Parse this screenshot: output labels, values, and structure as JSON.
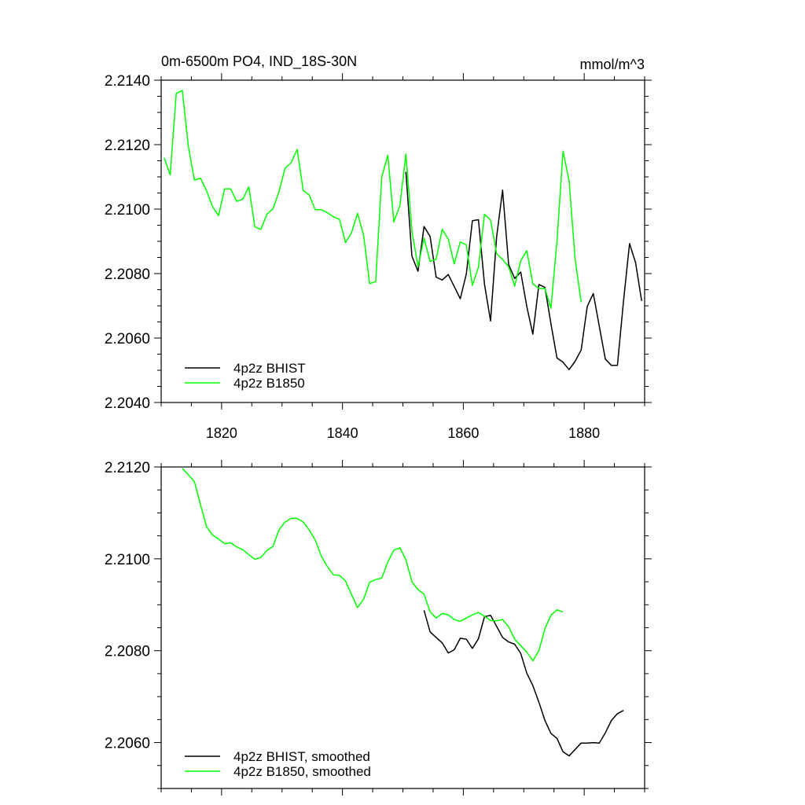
{
  "chart_data": [
    {
      "type": "line",
      "title": "0m-6500m PO4, IND_18S-30N",
      "units_label": "mmol/m^3",
      "xlim": [
        1810,
        1890
      ],
      "ylim": [
        2.204,
        2.214
      ],
      "x_ticks": [
        1820,
        1840,
        1860,
        1880
      ],
      "x_tick_labels": [
        "1820",
        "1840",
        "1860",
        "1880"
      ],
      "y_ticks": [
        2.204,
        2.206,
        2.208,
        2.21,
        2.212,
        2.214
      ],
      "y_tick_labels": [
        "2.2040",
        "2.2060",
        "2.2080",
        "2.2100",
        "2.2120",
        "2.2140"
      ],
      "legend_position": "bottom-left",
      "series": [
        {
          "name": "4p2z BHIST",
          "color": "#000000",
          "x_start": 1850.5,
          "values": [
            2.21116,
            2.20854,
            2.20807,
            2.20946,
            2.20915,
            2.20789,
            2.2078,
            2.20797,
            2.2076,
            2.20722,
            2.20799,
            2.20964,
            2.20967,
            2.20767,
            2.20653,
            2.20913,
            2.21059,
            2.20828,
            2.20785,
            2.20805,
            2.20698,
            2.20612,
            2.20766,
            2.20757,
            2.20645,
            2.20538,
            2.20525,
            2.20502,
            2.20528,
            2.20563,
            2.20698,
            2.20738,
            2.20637,
            2.20535,
            2.20515,
            2.20515,
            2.20714,
            2.20893,
            2.20834,
            2.20715
          ]
        },
        {
          "name": "4p2z B1850",
          "color": "#00ff00",
          "x_start": 1810.5,
          "values": [
            2.21159,
            2.21106,
            2.21359,
            2.21368,
            2.21195,
            2.2109,
            2.21096,
            2.21057,
            2.21008,
            2.2098,
            2.21063,
            2.21063,
            2.21024,
            2.21031,
            2.21069,
            2.20945,
            2.20937,
            2.20984,
            2.21001,
            2.21054,
            2.21127,
            2.21144,
            2.21185,
            2.21058,
            2.21044,
            2.20998,
            2.20998,
            2.20989,
            2.20976,
            2.20968,
            2.20896,
            2.20927,
            2.20987,
            2.20919,
            2.20769,
            2.20775,
            2.211,
            2.21167,
            2.2096,
            2.21011,
            2.21171,
            2.20933,
            2.20821,
            2.2091,
            2.20837,
            2.20845,
            2.20937,
            2.20907,
            2.2083,
            2.20898,
            2.20889,
            2.20763,
            2.2082,
            2.20984,
            2.20966,
            2.20862,
            2.20844,
            2.20821,
            2.20761,
            2.2084,
            2.20871,
            2.20768,
            2.20754,
            2.20754,
            2.20692,
            2.20901,
            2.2118,
            2.21088,
            2.20844,
            2.20711
          ]
        }
      ]
    },
    {
      "type": "line",
      "xlim": [
        1810,
        1890
      ],
      "ylim": [
        2.205,
        2.212
      ],
      "x_ticks": [
        1820,
        1840,
        1860,
        1880
      ],
      "y_ticks": [
        2.206,
        2.208,
        2.21,
        2.212
      ],
      "y_tick_labels": [
        "2.2060",
        "2.2080",
        "2.2100",
        "2.2120"
      ],
      "legend_position": "bottom-left",
      "series": [
        {
          "name": "4p2z BHIST, smoothed",
          "color": "#000000",
          "x_start": 1853.5,
          "values": [
            2.20888,
            2.20841,
            2.20829,
            2.20817,
            2.20795,
            2.20802,
            2.20827,
            2.20825,
            2.20805,
            2.20826,
            2.20874,
            2.20877,
            2.20853,
            2.20829,
            2.20819,
            2.20814,
            2.20794,
            2.20751,
            2.20724,
            2.20688,
            2.20648,
            2.2062,
            2.20609,
            2.2058,
            2.20571,
            2.20585,
            2.20599,
            2.20599,
            2.206,
            2.20599,
            2.20621,
            2.20648,
            2.20663,
            2.2067
          ]
        },
        {
          "name": "4p2z B1850, smoothed",
          "color": "#00ff00",
          "x_start": 1813.5,
          "values": [
            2.21197,
            2.21183,
            2.21168,
            2.21118,
            2.2107,
            2.21052,
            2.21043,
            2.21033,
            2.21035,
            2.21026,
            2.2102,
            2.21009,
            2.20999,
            2.21003,
            2.21018,
            2.21027,
            2.21063,
            2.2108,
            2.21088,
            2.21088,
            2.2108,
            2.21063,
            2.21041,
            2.21006,
            2.20983,
            2.20965,
            2.20964,
            2.20952,
            2.20922,
            2.20894,
            2.20912,
            2.20949,
            2.20955,
            2.20958,
            2.20993,
            2.21019,
            2.21024,
            2.20998,
            2.2095,
            2.20933,
            2.20923,
            2.20885,
            2.20871,
            2.20881,
            2.20878,
            2.20868,
            2.20864,
            2.20871,
            2.20878,
            2.20883,
            2.20875,
            2.20866,
            2.20865,
            2.20868,
            2.20852,
            2.20825,
            2.20811,
            2.20797,
            2.20778,
            2.208,
            2.20848,
            2.20877,
            2.20889,
            2.20884
          ]
        }
      ]
    }
  ]
}
